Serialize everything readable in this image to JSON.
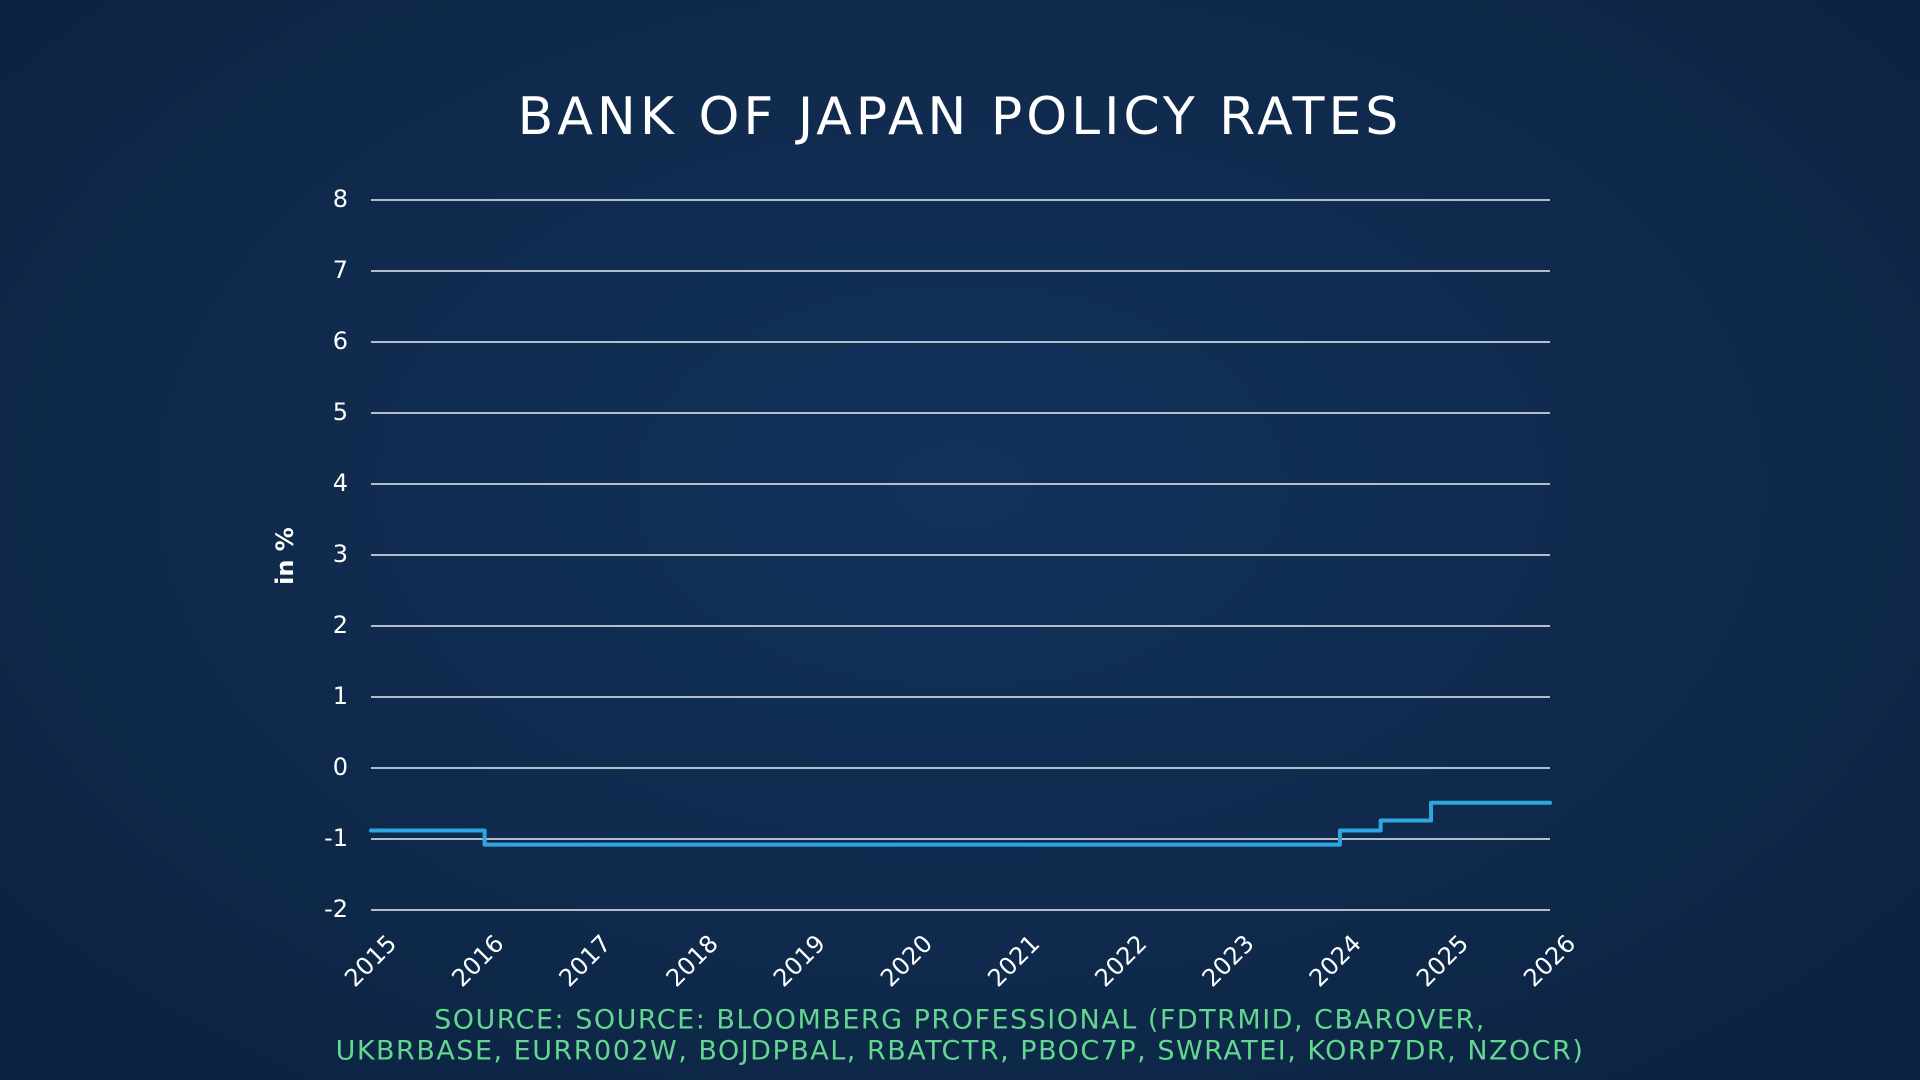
{
  "chart_data": {
    "type": "line",
    "step": "post",
    "title": "BANK OF JAPAN POLICY RATES",
    "y_label": "in %",
    "source": [
      "SOURCE: SOURCE: BLOOMBERG PROFESSIONAL (FDTRMID, CBAROVER,",
      "UKBRBASE, EURR002W, BOJDPBAL, RBATCTR, PBOC7P, SWRATEI, KORP7DR, NZOCR)"
    ],
    "x": [
      2015,
      2016.06,
      2024.04,
      2024.42,
      2024.89
    ],
    "series": [
      {
        "color": "#2ea6e2",
        "values": [
          -0.88,
          -1.08,
          -0.88,
          -0.74,
          -0.49
        ]
      }
    ],
    "xlim": [
      2015,
      2026
    ],
    "xticks": [
      2015,
      2016,
      2017,
      2018,
      2019,
      2020,
      2021,
      2022,
      2023,
      2024,
      2025,
      2026
    ],
    "ylim": [
      -2,
      8
    ],
    "yticks": [
      -2,
      -1,
      0,
      1,
      2,
      3,
      4,
      5,
      6,
      7,
      8
    ],
    "grid": true
  }
}
